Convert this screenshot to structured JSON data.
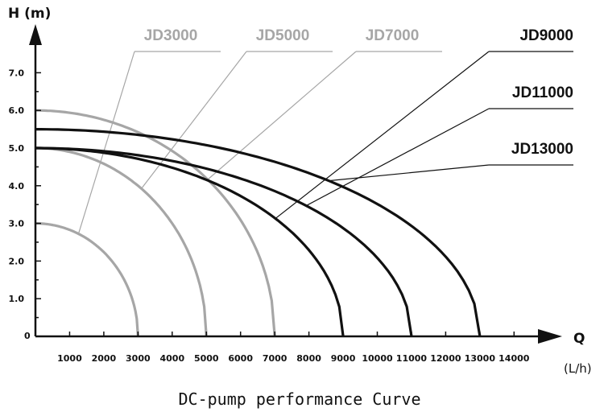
{
  "chart_data": {
    "type": "line",
    "title": "DC-pump performance Curve",
    "ylabel": "H (m)",
    "xlabel": "Q",
    "xunit": "(L/h)",
    "xlim": [
      0,
      14000
    ],
    "ylim": [
      0,
      7.0
    ],
    "y_zero_label": "0",
    "grid": false,
    "x_ticks": [
      "1000",
      "2000",
      "3000",
      "4000",
      "5000",
      "6000",
      "7000",
      "8000",
      "9000",
      "10000",
      "11000",
      "12000",
      "13000",
      "14000"
    ],
    "y_ticks": [
      "1.0",
      "2.0",
      "3.0",
      "4.0",
      "5.0",
      "6.0",
      "7.0"
    ],
    "colors": {
      "light": "#a6a6a6",
      "dark": "#111111"
    },
    "series": [
      {
        "name": "JD3000",
        "max_head": 3.0,
        "max_flow": 3000,
        "color": "#a6a6a6"
      },
      {
        "name": "JD5000",
        "max_head": 5.0,
        "max_flow": 5000,
        "color": "#a6a6a6"
      },
      {
        "name": "JD7000",
        "max_head": 6.0,
        "max_flow": 7000,
        "color": "#a6a6a6"
      },
      {
        "name": "JD9000",
        "max_head": 5.0,
        "max_flow": 9000,
        "color": "#111111"
      },
      {
        "name": "JD11000",
        "max_head": 5.0,
        "max_flow": 11000,
        "color": "#111111"
      },
      {
        "name": "JD13000",
        "max_head": 5.5,
        "max_flow": 13000,
        "color": "#111111"
      }
    ]
  }
}
